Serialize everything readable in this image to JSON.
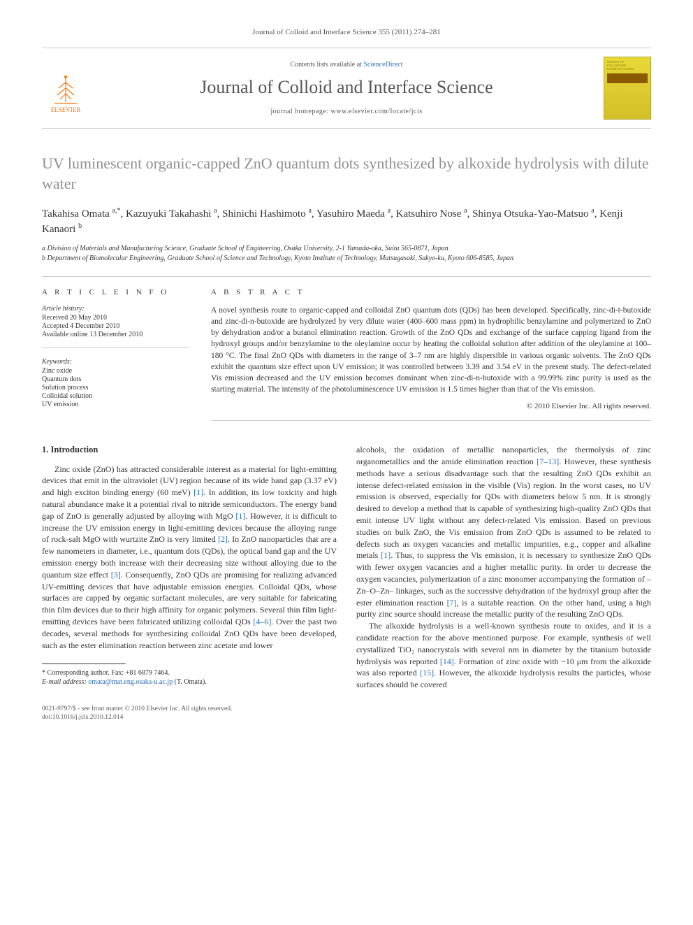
{
  "journal_ref": "Journal of Colloid and Interface Science 355 (2011) 274–281",
  "header": {
    "elsevier_label": "ELSEVIER",
    "contents_prefix": "Contents lists available at ",
    "contents_link": "ScienceDirect",
    "journal_name": "Journal of Colloid and Interface Science",
    "journal_url": "journal homepage: www.elsevier.com/locate/jcis"
  },
  "title": "UV luminescent organic-capped ZnO quantum dots synthesized by alkoxide hydrolysis with dilute water",
  "authors_html": "Takahisa Omata <sup>a,*</sup>, Kazuyuki Takahashi <sup>a</sup>, Shinichi Hashimoto <sup>a</sup>, Yasuhiro Maeda <sup>a</sup>, Katsuhiro Nose <sup>a</sup>, Shinya Otsuka-Yao-Matsuo <sup>a</sup>, Kenji Kanaori <sup>b</sup>",
  "affiliations": [
    "a Division of Materials and Manufacturing Science, Graduate School of Engineering, Osaka University, 2-1 Yamada-oka, Suita 565-0871, Japan",
    "b Department of Biomolecular Engineering, Graduate School of Science and Technology, Kyoto Institute of Technology, Matsugasaki, Sakyo-ku, Kyoto 606-8585, Japan"
  ],
  "article_info": {
    "heading": "A R T I C L E   I N F O",
    "history_label": "Article history:",
    "history": [
      "Received 20 May 2010",
      "Accepted 4 December 2010",
      "Available online 13 December 2010"
    ],
    "keywords_label": "Keywords:",
    "keywords": [
      "Zinc oxide",
      "Quantum dots",
      "Solution process",
      "Colloidal solution",
      "UV emission"
    ]
  },
  "abstract": {
    "heading": "A B S T R A C T",
    "text": "A novel synthesis route to organic-capped and colloidal ZnO quantum dots (QDs) has been developed. Specifically, zinc-di-t-butoxide and zinc-di-n-butoxide are hydrolyzed by very dilute water (400–600 mass ppm) in hydrophilic benzylamine and polymerized to ZnO by dehydration and/or a butanol elimination reaction. Growth of the ZnO QDs and exchange of the surface capping ligand from the hydroxyl groups and/or benzylamine to the oleylamine occur by heating the colloidal solution after addition of the oleylamine at 100–180 °C. The final ZnO QDs with diameters in the range of 3–7 nm are highly dispersible in various organic solvents. The ZnO QDs exhibit the quantum size effect upon UV emission; it was controlled between 3.39 and 3.54 eV in the present study. The defect-related Vis emission decreased and the UV emission becomes dominant when zinc-di-n-butoxide with a 99.99% zinc purity is used as the starting material. The intensity of the photoluminescence UV emission is 1.5 times higher than that of the Vis emission.",
    "copyright": "© 2010 Elsevier Inc. All rights reserved."
  },
  "body": {
    "section_heading": "1. Introduction",
    "para1": "Zinc oxide (ZnO) has attracted considerable interest as a material for light-emitting devices that emit in the ultraviolet (UV) region because of its wide band gap (3.37 eV) and high exciton binding energy (60 meV) [1]. In addition, its low toxicity and high natural abundance make it a potential rival to nitride semiconductors. The energy band gap of ZnO is generally adjusted by alloying with MgO [1]. However, it is difficult to increase the UV emission energy in light-emitting devices because the alloying range of rock-salt MgO with wurtzite ZnO is very limited [2]. In ZnO nanoparticles that are a few nanometers in diameter, i.e., quantum dots (QDs), the optical band gap and the UV emission energy both increase with their decreasing size without alloying due to the quantum size effect [3]. Consequently, ZnO QDs are promising for realizing advanced UV-emitting devices that have adjustable emission energies. Colloidal QDs, whose surfaces are capped by organic surfactant molecules, are very suitable for fabricating thin film devices due to their high affinity for organic polymers. Several thin film light-emitting devices have been fabricated utilizing colloidal QDs [4–6]. Over the past two decades, several methods for synthesizing colloidal ZnO QDs have been developed, such as the ester elimination reaction between zinc acetate and lower",
    "para1b": "alcohols, the oxidation of metallic nanoparticles, the thermolysis of zinc organometallics and the amide elimination reaction [7–13]. However, these synthesis methods have a serious disadvantage such that the resulting ZnO QDs exhibit an intense defect-related emission in the visible (Vis) region. In the worst cases, no UV emission is observed, especially for QDs with diameters below 5 nm. It is strongly desired to develop a method that is capable of synthesizing high-quality ZnO QDs that emit intense UV light without any defect-related Vis emission. Based on previous studies on bulk ZnO, the Vis emission from ZnO QDs is assumed to be related to defects such as oxygen vacancies and metallic impurities, e.g., copper and alkaline metals [1]. Thus, to suppress the Vis emission, it is necessary to synthesize ZnO QDs with fewer oxygen vacancies and a higher metallic purity. In order to decrease the oxygen vacancies, polymerization of a zinc monomer accompanying the formation of –Zn–O–Zn– linkages, such as the successive dehydration of the hydroxyl group after the ester elimination reaction [7], is a suitable reaction. On the other hand, using a high purity zinc source should increase the metallic purity of the resulting ZnO QDs.",
    "para2": "The alkoxide hydrolysis is a well-known synthesis route to oxides, and it is a candidate reaction for the above mentioned purpose. For example, synthesis of well crystallized TiO₂ nanocrystals with several nm in diameter by the titanium butoxide hydrolysis was reported [14]. Formation of zinc oxide with ~10 μm from the alkoxide was also reported [15]. However, the alkoxide hydrolysis results the particles, whose surfaces should be covered"
  },
  "footnote": {
    "corr": "* Corresponding author. Fax: +81 6879 7464.",
    "email_label": "E-mail address:",
    "email": "omata@mat.eng.osaka-u.ac.jp",
    "email_who": "(T. Omata)."
  },
  "footer": {
    "line1": "0021-9797/$ - see front matter © 2010 Elsevier Inc. All rights reserved.",
    "line2": "doi:10.1016/j.jcis.2010.12.014"
  },
  "colors": {
    "link": "#2a6ebb",
    "title_gray": "#909090",
    "elsevier_orange": "#ff7200",
    "cover_yellow": "#e8d838"
  }
}
